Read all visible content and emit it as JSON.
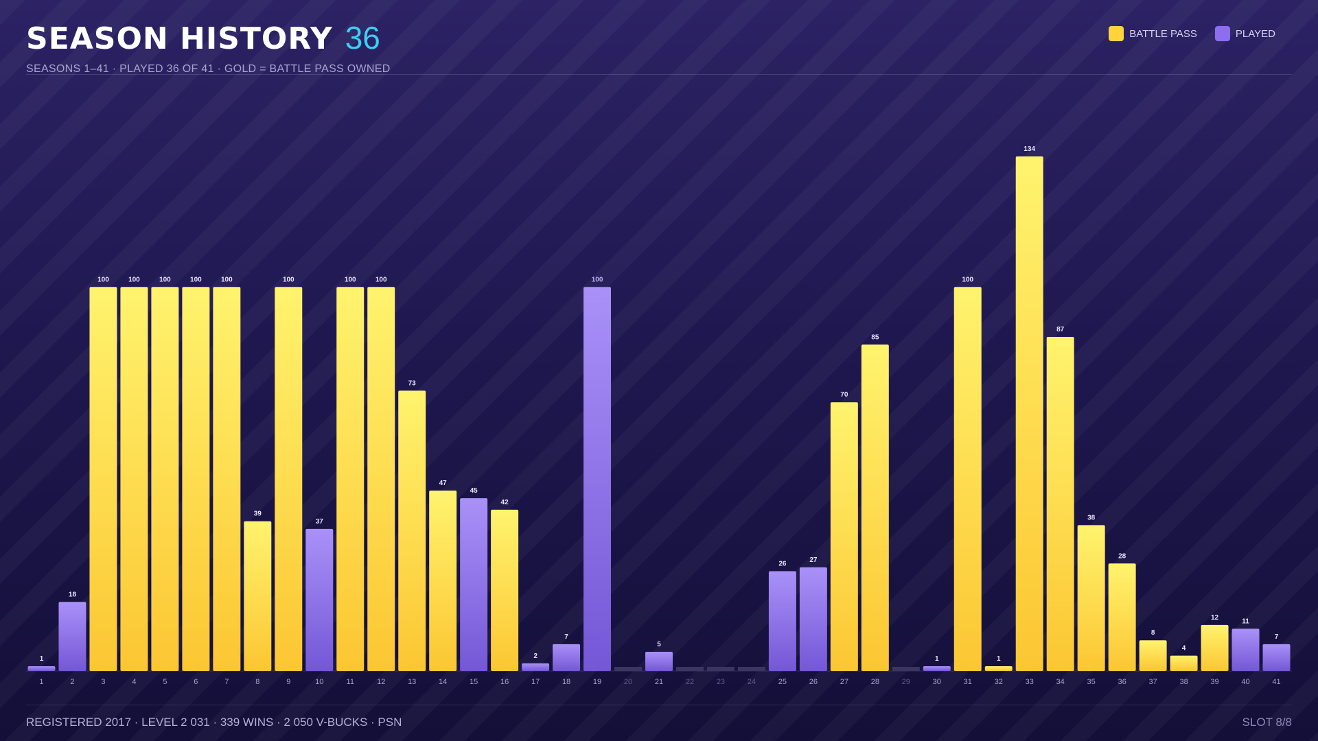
{
  "header": {
    "title": "SEASON HISTORY",
    "count": "36",
    "subtitle": "SEASONS 1–41 · PLAYED 36 OF 41 · GOLD = BATTLE PASS OWNED"
  },
  "legend": {
    "items": [
      {
        "label": "BATTLE PASS",
        "color": "#ffd43b"
      },
      {
        "label": "PLAYED",
        "color": "#8d6ef0"
      }
    ]
  },
  "footer": {
    "text": "REGISTERED 2017 · LEVEL 2 031 · 339 WINS · 2 050 V-BUCKS · PSN",
    "slot": "SLOT 8/8"
  },
  "colors": {
    "battle_pass_top": "#fff36e",
    "battle_pass_bottom": "#fcc632",
    "played_top": "#a991f8",
    "played_bottom": "#7457d6",
    "unplayed": "#3b3562",
    "accent": "#39d0f2"
  },
  "chart_data": {
    "type": "bar",
    "categories": [
      "1",
      "2",
      "3",
      "4",
      "5",
      "6",
      "7",
      "8",
      "9",
      "10",
      "11",
      "12",
      "13",
      "14",
      "15",
      "16",
      "17",
      "18",
      "19",
      "20",
      "21",
      "22",
      "23",
      "24",
      "25",
      "26",
      "27",
      "28",
      "29",
      "30",
      "31",
      "32",
      "33",
      "34",
      "35",
      "36",
      "37",
      "38",
      "39",
      "40",
      "41"
    ],
    "values": [
      1,
      18,
      100,
      100,
      100,
      100,
      100,
      39,
      100,
      37,
      100,
      100,
      73,
      47,
      45,
      42,
      2,
      7,
      100,
      0,
      5,
      0,
      0,
      0,
      26,
      27,
      70,
      85,
      0,
      1,
      100,
      1,
      134,
      87,
      38,
      28,
      8,
      4,
      12,
      11,
      7
    ],
    "status": [
      "played",
      "played",
      "battle_pass",
      "battle_pass",
      "battle_pass",
      "battle_pass",
      "battle_pass",
      "battle_pass",
      "battle_pass",
      "played",
      "battle_pass",
      "battle_pass",
      "battle_pass",
      "battle_pass",
      "played",
      "battle_pass",
      "played",
      "played",
      "played",
      "unplayed",
      "played",
      "unplayed",
      "unplayed",
      "unplayed",
      "played",
      "played",
      "battle_pass",
      "battle_pass",
      "unplayed",
      "played",
      "battle_pass",
      "battle_pass",
      "battle_pass",
      "battle_pass",
      "battle_pass",
      "battle_pass",
      "battle_pass",
      "battle_pass",
      "battle_pass",
      "played",
      "played"
    ],
    "ylim": [
      0,
      134
    ],
    "grid": false,
    "legend_position": "top-right"
  }
}
